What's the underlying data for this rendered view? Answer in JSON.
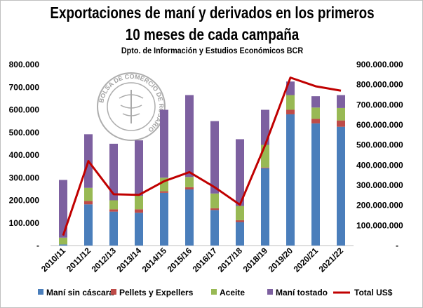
{
  "chart_data": {
    "type": "bar",
    "stacked": true,
    "title": "Exportaciones de maní y derivados en los primeros",
    "title_line2": "10 meses de cada campaña",
    "subtitle": "Dpto. de Información y Estudios Económicos BCR",
    "categories": [
      "2010/11",
      "2011/12",
      "2012/13",
      "2013/14",
      "2014/15",
      "2015/16",
      "2016/17",
      "2017/18",
      "2018/19",
      "2019/20",
      "2020/21",
      "2021/22"
    ],
    "series": [
      {
        "name": "Maní sin cáscara",
        "color": "#4a7ebb",
        "axis": "left",
        "values": [
          5000,
          182000,
          150000,
          145000,
          233000,
          248000,
          157000,
          104000,
          342000,
          580000,
          540000,
          525000
        ]
      },
      {
        "name": "Pellets y Expellers",
        "color": "#be4b48",
        "axis": "left",
        "values": [
          0,
          15000,
          10000,
          15000,
          7000,
          10000,
          8000,
          8000,
          3000,
          20000,
          20000,
          28000
        ]
      },
      {
        "name": "Aceite",
        "color": "#98b954",
        "axis": "left",
        "values": [
          30000,
          58000,
          40000,
          60000,
          60000,
          45000,
          65000,
          63000,
          100000,
          65000,
          50000,
          55000
        ]
      },
      {
        "name": "Maní tostado",
        "color": "#7d60a0",
        "axis": "left",
        "values": [
          255000,
          237000,
          250000,
          245000,
          300000,
          362000,
          320000,
          295000,
          155000,
          60000,
          50000,
          57000
        ]
      },
      {
        "name": "Total US$",
        "type": "line",
        "color": "#c00000",
        "axis": "right",
        "values": [
          50000000,
          420000000,
          255000000,
          252000000,
          320000000,
          365000000,
          290000000,
          203000000,
          500000000,
          835000000,
          792000000,
          770000000
        ]
      }
    ],
    "ylim": [
      0,
      800000
    ],
    "y_ticks": [
      "-",
      "100.000",
      "200.000",
      "300.000",
      "400.000",
      "500.000",
      "600.000",
      "700.000",
      "800.000"
    ],
    "y2lim": [
      0,
      900000000
    ],
    "y2_ticks": [
      "-",
      "100.000.000",
      "200.000.000",
      "300.000.000",
      "400.000.000",
      "500.000.000",
      "600.000.000",
      "700.000.000",
      "800.000.000",
      "900.000.000"
    ],
    "grid": false,
    "legend_position": "bottom",
    "watermark": "BOLSA DE COMERCIO DE ROSARIO"
  }
}
